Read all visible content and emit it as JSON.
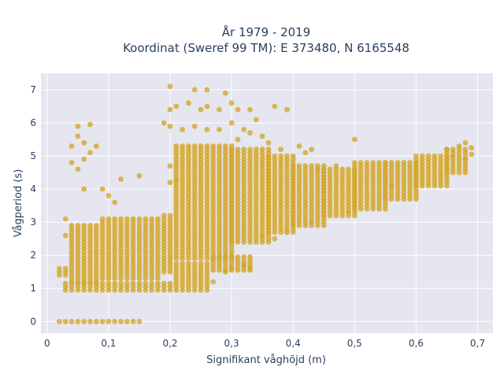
{
  "chart_data": {
    "type": "scatter",
    "title_line1": "År 1979 - 2019",
    "title_line2": "Koordinat (Sweref 99 TM): E 373480, N 6165548",
    "xlabel": "Signifikant våghöjd (m)",
    "ylabel": "Vågperiod (s)",
    "xlim": [
      -0.01,
      0.725
    ],
    "ylim": [
      -0.35,
      7.5
    ],
    "x_ticks": [
      0,
      0.1,
      0.2,
      0.3,
      0.4,
      0.5,
      0.6,
      0.7
    ],
    "x_tick_labels": [
      "0",
      "0,1",
      "0,2",
      "0,3",
      "0,4",
      "0,5",
      "0,6",
      "0,7"
    ],
    "y_ticks": [
      0,
      1,
      2,
      3,
      4,
      5,
      6,
      7
    ],
    "y_tick_labels": [
      "0",
      "1",
      "2",
      "3",
      "4",
      "5",
      "6",
      "7"
    ],
    "grid": true,
    "colors": {
      "marker": "#d4a72c",
      "plot_bg": "#e5e6ef",
      "grid": "#ffffff"
    },
    "bands": [
      [
        0.02,
        0.15,
        0.0,
        0.0
      ],
      [
        0.02,
        0.03,
        1.4,
        1.6
      ],
      [
        0.03,
        0.2,
        0.95,
        1.15
      ],
      [
        0.04,
        0.08,
        1.2,
        2.9
      ],
      [
        0.09,
        0.18,
        1.3,
        3.1
      ],
      [
        0.19,
        0.2,
        1.5,
        3.2
      ],
      [
        0.21,
        0.26,
        0.95,
        1.7
      ],
      [
        0.27,
        0.33,
        1.55,
        1.95
      ],
      [
        0.21,
        0.3,
        1.9,
        5.3
      ],
      [
        0.3,
        0.36,
        2.4,
        5.2
      ],
      [
        0.36,
        0.4,
        2.7,
        5.0
      ],
      [
        0.4,
        0.45,
        2.9,
        4.7
      ],
      [
        0.45,
        0.5,
        3.2,
        4.6
      ],
      [
        0.5,
        0.55,
        3.4,
        4.8
      ],
      [
        0.55,
        0.6,
        3.7,
        4.8
      ],
      [
        0.6,
        0.65,
        4.1,
        5.0
      ],
      [
        0.65,
        0.68,
        4.5,
        5.2
      ]
    ],
    "points": [
      [
        0.05,
        5.9
      ],
      [
        0.07,
        5.95
      ],
      [
        0.05,
        5.6
      ],
      [
        0.04,
        5.3
      ],
      [
        0.06,
        5.4
      ],
      [
        0.08,
        5.3
      ],
      [
        0.07,
        5.1
      ],
      [
        0.06,
        4.9
      ],
      [
        0.04,
        4.8
      ],
      [
        0.05,
        4.6
      ],
      [
        0.06,
        4.0
      ],
      [
        0.09,
        4.0
      ],
      [
        0.1,
        3.8
      ],
      [
        0.12,
        4.3
      ],
      [
        0.15,
        4.4
      ],
      [
        0.03,
        3.1
      ],
      [
        0.03,
        2.6
      ],
      [
        0.11,
        3.6
      ],
      [
        0.2,
        7.1
      ],
      [
        0.24,
        7.0
      ],
      [
        0.26,
        7.0
      ],
      [
        0.3,
        6.6
      ],
      [
        0.29,
        6.9
      ],
      [
        0.2,
        6.4
      ],
      [
        0.21,
        6.5
      ],
      [
        0.23,
        6.6
      ],
      [
        0.25,
        6.4
      ],
      [
        0.26,
        6.5
      ],
      [
        0.28,
        6.4
      ],
      [
        0.31,
        6.4
      ],
      [
        0.33,
        6.4
      ],
      [
        0.37,
        6.5
      ],
      [
        0.39,
        6.4
      ],
      [
        0.19,
        6.0
      ],
      [
        0.2,
        5.9
      ],
      [
        0.22,
        5.8
      ],
      [
        0.24,
        5.9
      ],
      [
        0.26,
        5.8
      ],
      [
        0.28,
        5.8
      ],
      [
        0.3,
        6.0
      ],
      [
        0.32,
        5.8
      ],
      [
        0.34,
        6.1
      ],
      [
        0.31,
        5.5
      ],
      [
        0.33,
        5.7
      ],
      [
        0.35,
        5.6
      ],
      [
        0.36,
        5.4
      ],
      [
        0.38,
        5.2
      ],
      [
        0.41,
        5.3
      ],
      [
        0.43,
        5.2
      ],
      [
        0.42,
        5.1
      ],
      [
        0.5,
        5.5
      ],
      [
        0.2,
        4.7
      ],
      [
        0.2,
        4.2
      ],
      [
        0.21,
        4.3
      ],
      [
        0.55,
        4.2
      ],
      [
        0.56,
        4.1
      ],
      [
        0.6,
        4.6
      ],
      [
        0.65,
        5.2
      ],
      [
        0.67,
        5.3
      ],
      [
        0.68,
        5.4
      ],
      [
        0.69,
        5.25
      ],
      [
        0.69,
        5.05
      ],
      [
        0.68,
        4.9
      ],
      [
        0.66,
        5.0
      ],
      [
        0.47,
        4.7
      ],
      [
        0.44,
        4.6
      ],
      [
        0.33,
        1.6
      ],
      [
        0.27,
        1.2
      ],
      [
        0.29,
        1.5
      ],
      [
        0.3,
        1.6
      ],
      [
        0.32,
        1.7
      ],
      [
        0.35,
        2.6
      ],
      [
        0.37,
        2.5
      ],
      [
        0.39,
        2.7
      ],
      [
        0.43,
        3.0
      ],
      [
        0.49,
        3.3
      ]
    ]
  }
}
